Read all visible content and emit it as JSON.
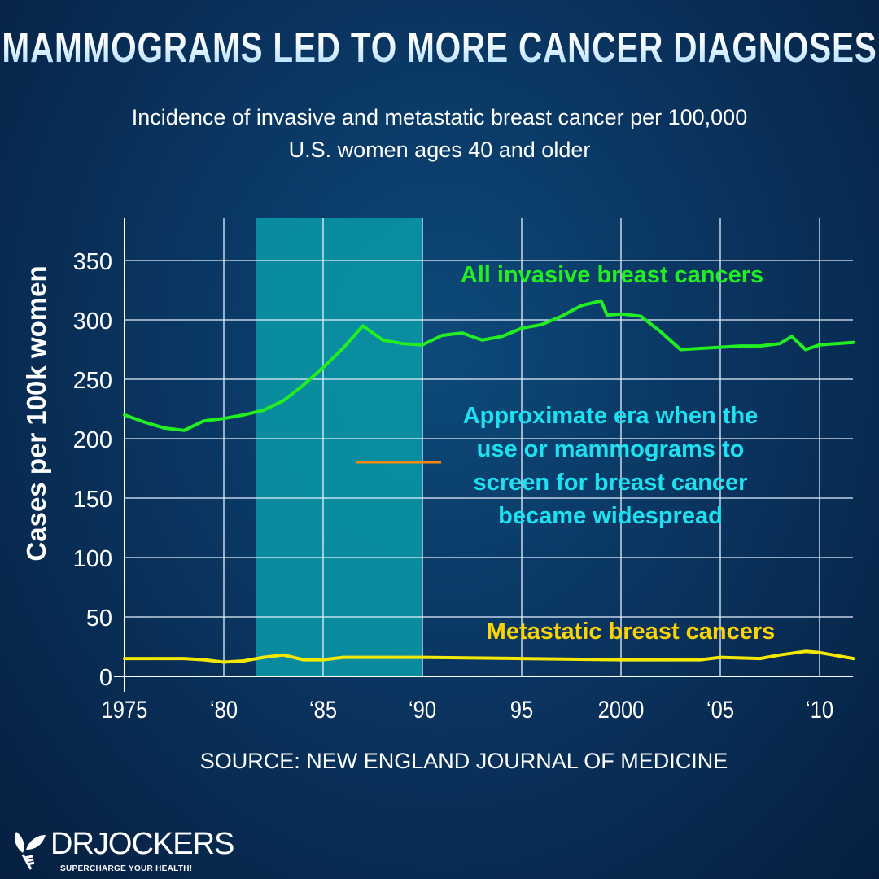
{
  "title": "MAMMOGRAMS LED TO MORE CANCER DIAGNOSES",
  "subtitle_lines": [
    "Incidence of invasive and metastatic breast cancer per 100,000",
    "U.S. women ages 40 and older"
  ],
  "source": "SOURCE: NEW ENGLAND JOURNAL OF MEDICINE",
  "logo": {
    "name": "DRJOCKERS",
    "tagline": "SUPERCHARGE YOUR HEALTH!"
  },
  "chart_data": {
    "type": "line",
    "title": "",
    "xlabel": "",
    "ylabel": "Cases per 100k women",
    "xlim": [
      1975,
      2011.7
    ],
    "ylim": [
      0,
      375
    ],
    "grid": true,
    "x_ticks": [
      1975,
      1980,
      1985,
      1990,
      1995,
      2000,
      2005,
      2010
    ],
    "x_tick_labels": [
      "1975",
      "‘80",
      "‘85",
      "‘90",
      "95",
      "2000",
      "‘05",
      "‘10"
    ],
    "y_ticks": [
      0,
      50,
      100,
      150,
      200,
      250,
      300,
      350
    ],
    "y_tick_labels": [
      "0",
      "50",
      "100",
      "150",
      "200",
      "250",
      "300",
      "350"
    ],
    "highlight_band": {
      "from": 1981.6,
      "to": 1990,
      "color": "#0a9aa8",
      "label": [
        "Approximate era when the",
        "use or mammograms to",
        "screen for breast cancer",
        "became widespread"
      ],
      "label_color": "#1ee0f0",
      "marker_color": "#f08a10"
    },
    "series": [
      {
        "name": "All invasive breast cancers",
        "color": "#22ee22",
        "x": [
          1975,
          1976,
          1977,
          1978,
          1979,
          1980,
          1981,
          1982,
          1983,
          1984,
          1985,
          1986,
          1987,
          1988,
          1989,
          1990,
          1991,
          1992,
          1993,
          1994,
          1995,
          1996,
          1997,
          1998,
          1999,
          1999.3,
          2000,
          2001,
          2002,
          2003,
          2004,
          2005,
          2006,
          2007,
          2008,
          2008.6,
          2009.3,
          2010,
          2011.7
        ],
        "y": [
          220,
          214,
          209,
          207,
          215,
          217,
          220,
          224,
          232,
          245,
          260,
          276,
          295,
          283,
          280,
          279,
          287,
          289,
          283,
          286,
          293,
          296,
          303,
          312,
          316,
          304,
          305,
          303,
          290,
          275,
          276,
          277,
          278,
          278,
          280,
          286,
          275,
          279,
          281
        ]
      },
      {
        "name": "Metastatic breast cancers",
        "color": "#f5e800",
        "x": [
          1975,
          1978,
          1979,
          1980,
          1981,
          1982,
          1983,
          1984,
          1985,
          1986,
          1990,
          1995,
          2000,
          2004,
          2005,
          2007,
          2008,
          2009.3,
          2010,
          2011.7
        ],
        "y": [
          15,
          15,
          14,
          12,
          13,
          16,
          18,
          14,
          14,
          16,
          16,
          15,
          14,
          14,
          16,
          15,
          18,
          21,
          20,
          15
        ]
      }
    ]
  }
}
